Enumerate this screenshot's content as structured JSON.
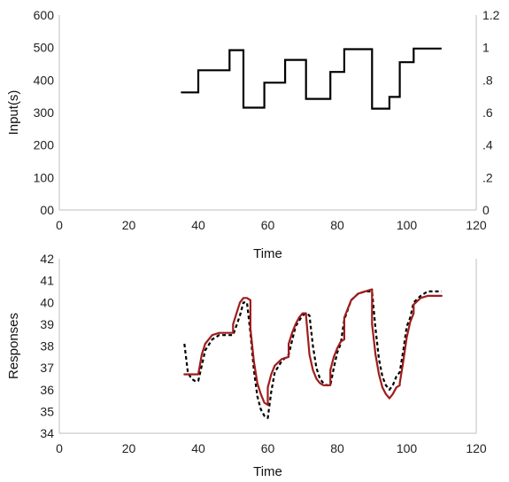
{
  "chart_data": [
    {
      "type": "line",
      "title": "",
      "xlabel": "Time",
      "ylabel": "Input(s)",
      "xlim": [
        0,
        120
      ],
      "ylim": [
        0,
        600
      ],
      "y2lim": [
        0,
        1.2
      ],
      "grid": false,
      "x_ticks": [
        "0",
        "20",
        "40",
        "60",
        "80",
        "100",
        "120"
      ],
      "y_ticks": [
        "00",
        "100",
        "200",
        "300",
        "400",
        "500",
        "600"
      ],
      "y2_ticks": [
        "0",
        ".2",
        ".4",
        ".6",
        ".8",
        "1",
        "1.2"
      ],
      "series": [
        {
          "color": "#000000",
          "style": "step",
          "x": [
            35,
            40,
            40,
            49,
            49,
            53,
            53,
            59,
            59,
            65,
            65,
            71,
            71,
            78,
            78,
            82,
            82,
            90,
            90,
            95,
            95,
            98,
            98,
            102,
            102,
            110
          ],
          "y": [
            362,
            362,
            430,
            430,
            492,
            492,
            315,
            315,
            392,
            392,
            462,
            462,
            342,
            342,
            425,
            425,
            495,
            495,
            312,
            312,
            348,
            348,
            455,
            455,
            497,
            497
          ]
        }
      ]
    },
    {
      "type": "line",
      "title": "",
      "xlabel": "Time",
      "ylabel": "Responses",
      "xlim": [
        0,
        120
      ],
      "ylim": [
        34,
        42
      ],
      "grid": false,
      "x_ticks": [
        "0",
        "20",
        "40",
        "60",
        "80",
        "100",
        "120"
      ],
      "y_ticks": [
        "34",
        "35",
        "36",
        "37",
        "38",
        "39",
        "40",
        "41",
        "42"
      ],
      "series": [
        {
          "color": "#000000",
          "style": "dashed",
          "x": [
            36,
            37,
            38,
            39,
            40,
            41,
            42,
            44,
            46,
            48,
            50,
            52,
            53,
            54,
            55,
            56,
            57,
            58,
            59,
            60,
            61,
            62,
            64,
            66,
            68,
            70,
            71,
            72,
            73,
            74,
            75,
            76,
            77,
            78,
            79,
            80,
            81,
            82,
            84,
            86,
            88,
            90,
            91,
            92,
            93,
            94,
            95,
            96,
            97,
            98,
            99,
            100,
            101,
            102,
            104,
            106,
            108,
            110
          ],
          "y": [
            38.1,
            36.8,
            36.5,
            36.4,
            36.4,
            37.1,
            37.8,
            38.3,
            38.5,
            38.5,
            38.5,
            39.4,
            40.0,
            40.0,
            38.6,
            36.9,
            35.7,
            35.1,
            34.8,
            34.7,
            35.9,
            36.8,
            37.3,
            37.6,
            38.9,
            39.4,
            39.5,
            39.4,
            38.0,
            37.0,
            36.5,
            36.3,
            36.2,
            36.2,
            37.0,
            37.7,
            38.1,
            39.2,
            40.1,
            40.4,
            40.5,
            40.5,
            38.8,
            37.4,
            36.6,
            36.2,
            36.0,
            36.2,
            36.6,
            36.8,
            37.8,
            38.9,
            39.3,
            40.0,
            40.3,
            40.5,
            40.5,
            40.5
          ]
        },
        {
          "color": "#a01c1c",
          "style": "solid",
          "x": [
            36,
            38,
            39,
            40,
            41,
            42,
            44,
            46,
            48,
            50,
            50,
            51,
            52,
            53,
            54,
            55,
            55,
            56,
            57,
            58,
            59,
            60,
            60,
            61,
            62,
            64,
            66,
            66,
            67,
            68,
            69,
            70,
            71,
            71,
            72,
            73,
            74,
            75,
            76,
            77,
            78,
            78,
            79,
            80,
            81,
            82,
            82,
            84,
            86,
            88,
            90,
            90,
            91,
            92,
            93,
            94,
            95,
            96,
            97,
            98,
            98,
            99,
            100,
            101,
            102,
            102,
            104,
            106,
            108,
            110
          ],
          "y": [
            36.7,
            36.7,
            36.7,
            36.7,
            37.6,
            38.1,
            38.5,
            38.6,
            38.6,
            38.6,
            39.0,
            39.5,
            40.0,
            40.2,
            40.2,
            40.1,
            38.8,
            37.3,
            36.3,
            35.8,
            35.4,
            35.3,
            36.1,
            36.7,
            37.1,
            37.4,
            37.5,
            38.1,
            38.6,
            39.0,
            39.3,
            39.5,
            39.5,
            39.4,
            37.6,
            36.9,
            36.5,
            36.3,
            36.2,
            36.2,
            36.2,
            36.9,
            37.5,
            37.9,
            38.2,
            38.3,
            39.3,
            40.1,
            40.4,
            40.5,
            40.6,
            39.0,
            37.6,
            36.7,
            36.1,
            35.8,
            35.6,
            35.8,
            36.1,
            36.2,
            36.3,
            37.3,
            38.4,
            39.1,
            39.5,
            39.9,
            40.2,
            40.3,
            40.3,
            40.3
          ]
        }
      ]
    }
  ]
}
